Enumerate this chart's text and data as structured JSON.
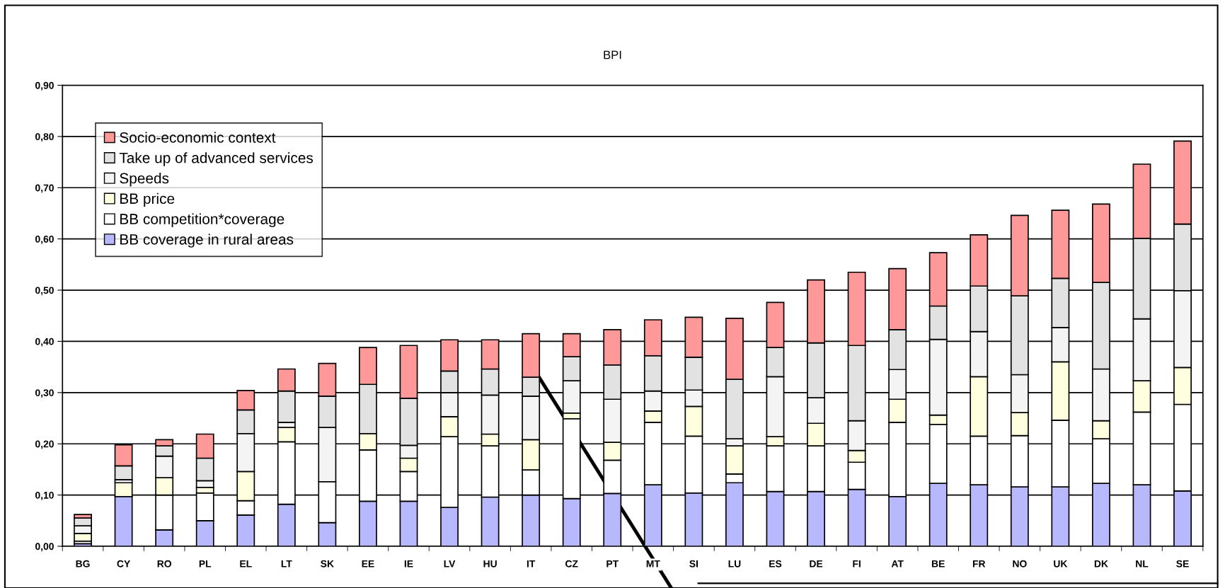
{
  "chart_data": {
    "type": "bar",
    "title": "BPI",
    "stacked": true,
    "categories": [
      "BG",
      "CY",
      "RO",
      "PL",
      "EL",
      "LT",
      "SK",
      "EE",
      "IE",
      "LV",
      "HU",
      "IT",
      "CZ",
      "PT",
      "MT",
      "SI",
      "LU",
      "ES",
      "DE",
      "FI",
      "AT",
      "BE",
      "FR",
      "NO",
      "UK",
      "DK",
      "NL",
      "SE"
    ],
    "series": [
      {
        "name": "BB coverage in rural areas",
        "color": "#b8b8ff",
        "values": [
          0.005,
          0.097,
          0.032,
          0.05,
          0.061,
          0.082,
          0.046,
          0.088,
          0.088,
          0.076,
          0.096,
          0.1,
          0.093,
          0.103,
          0.12,
          0.104,
          0.124,
          0.107,
          0.107,
          0.111,
          0.097,
          0.123,
          0.12,
          0.116,
          0.116,
          0.123,
          0.12,
          0.108
        ]
      },
      {
        "name": "BB competition*coverage",
        "color": "#ffffff",
        "values": [
          0.005,
          0,
          0.068,
          0.054,
          0.028,
          0.122,
          0.08,
          0.1,
          0.058,
          0.138,
          0.1,
          0.049,
          0.156,
          0.065,
          0.122,
          0.111,
          0.017,
          0.089,
          0.089,
          0.053,
          0.145,
          0.115,
          0.095,
          0.1,
          0.13,
          0.087,
          0.142,
          0.169
        ]
      },
      {
        "name": "BB price",
        "color": "#ffffe0",
        "values": [
          0.015,
          0.027,
          0.034,
          0.011,
          0.057,
          0.028,
          0,
          0.032,
          0.026,
          0.039,
          0.023,
          0.059,
          0.011,
          0.035,
          0.022,
          0.058,
          0.055,
          0.018,
          0.044,
          0.023,
          0.045,
          0.018,
          0.116,
          0.045,
          0.114,
          0.035,
          0.061,
          0.072
        ]
      },
      {
        "name": "Speeds",
        "color": "#f4f4f4",
        "values": [
          0.015,
          0.006,
          0.042,
          0.013,
          0.074,
          0.01,
          0.106,
          0,
          0.025,
          0.047,
          0.076,
          0.085,
          0.063,
          0.084,
          0.039,
          0.032,
          0.014,
          0.117,
          0.05,
          0.058,
          0.058,
          0.148,
          0.088,
          0.074,
          0.067,
          0.101,
          0.121,
          0.15
        ]
      },
      {
        "name": "Take up of advanced services",
        "color": "#e2e2e2",
        "values": [
          0.015,
          0.027,
          0.02,
          0.044,
          0.046,
          0.061,
          0.061,
          0.096,
          0.092,
          0.042,
          0.051,
          0.037,
          0.047,
          0.067,
          0.069,
          0.064,
          0.116,
          0.057,
          0.107,
          0.147,
          0.078,
          0.065,
          0.089,
          0.154,
          0.096,
          0.169,
          0.157,
          0.13
        ]
      },
      {
        "name": "Socio-economic context",
        "color": "#ff9999",
        "values": [
          0.007,
          0.041,
          0.012,
          0.047,
          0.038,
          0.043,
          0.064,
          0.072,
          0.103,
          0.061,
          0.057,
          0.085,
          0.045,
          0.069,
          0.07,
          0.078,
          0.119,
          0.088,
          0.123,
          0.143,
          0.119,
          0.104,
          0.1,
          0.157,
          0.133,
          0.153,
          0.145,
          0.162
        ]
      }
    ],
    "ylim": [
      0,
      0.9
    ],
    "yticks": [
      {
        "value": 0,
        "label": "0,00"
      },
      {
        "value": 0.1,
        "label": "0,10"
      },
      {
        "value": 0.2,
        "label": "0,20"
      },
      {
        "value": 0.3,
        "label": "0,30"
      },
      {
        "value": 0.4,
        "label": "0,40"
      },
      {
        "value": 0.5,
        "label": "0,50"
      },
      {
        "value": 0.6,
        "label": "0,60"
      },
      {
        "value": 0.7,
        "label": "0,70"
      },
      {
        "value": 0.8,
        "label": "0,80"
      },
      {
        "value": 0.9,
        "label": "0,90"
      }
    ],
    "grid": "y",
    "legend": "top left"
  }
}
